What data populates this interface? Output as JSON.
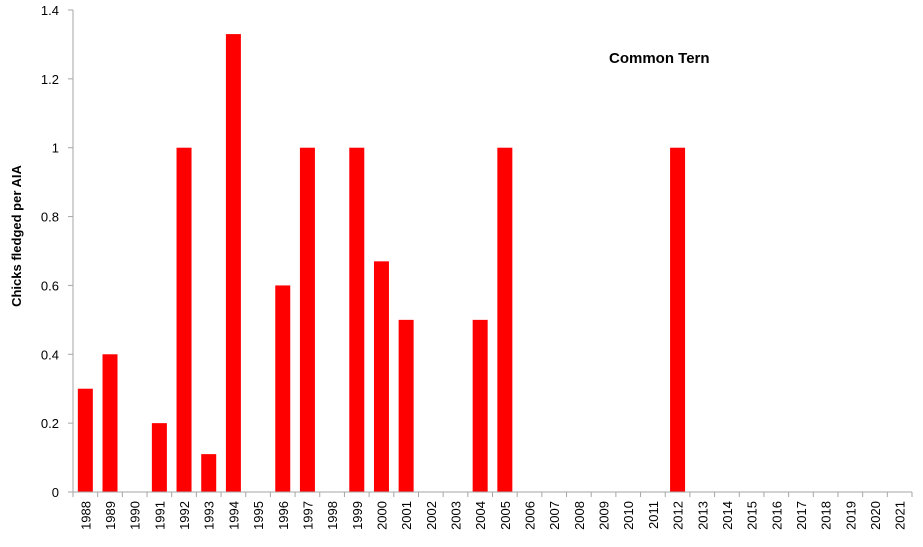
{
  "chart_data": {
    "type": "bar",
    "categories": [
      "1988",
      "1989",
      "1990",
      "1991",
      "1992",
      "1993",
      "1994",
      "1995",
      "1996",
      "1997",
      "1998",
      "1999",
      "2000",
      "2001",
      "2002",
      "2003",
      "2004",
      "2005",
      "2006",
      "2007",
      "2008",
      "2009",
      "2010",
      "2011",
      "2012",
      "2013",
      "2014",
      "2015",
      "2016",
      "2017",
      "2018",
      "2019",
      "2020",
      "2021"
    ],
    "values": [
      0.3,
      0.4,
      0,
      0.2,
      1,
      0.11,
      1.33,
      0,
      0.6,
      1,
      0,
      1,
      0.67,
      0.5,
      0,
      0,
      0.5,
      1,
      0,
      0,
      0,
      0,
      0,
      0,
      1,
      0,
      0,
      0,
      0,
      0,
      0,
      0,
      0,
      0
    ],
    "ylim": [
      0,
      1.4
    ],
    "yticks": [
      0,
      0.2,
      0.4,
      0.6,
      0.8,
      1,
      1.2,
      1.4
    ],
    "ytick_labels": [
      "0",
      "0.2",
      "0.4",
      "0.6",
      "0.8",
      "1",
      "1.2",
      "1.4"
    ],
    "ylabel": "Chicks fledged per AIA",
    "xlabel": "",
    "annotation": "Common Tern",
    "bar_color": "#ff0000",
    "axis_color": "#a6a6a6",
    "grid": false,
    "legend": "none"
  }
}
